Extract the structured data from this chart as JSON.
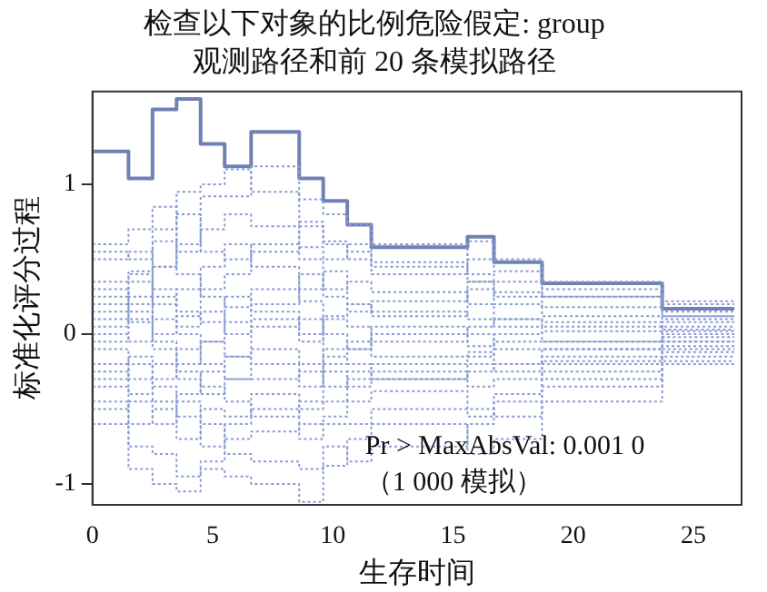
{
  "chart_data": {
    "type": "step",
    "title": "检查以下对象的比例危险假定: group",
    "subtitle": "观测路径和前 20 条模拟路径",
    "xlabel": "生存时间",
    "ylabel": "标准化评分过程",
    "x": [
      0,
      1.5,
      2.5,
      3.5,
      4.5,
      5.5,
      6.6,
      8.6,
      9.6,
      10.6,
      11.6,
      15.6,
      16.7,
      18.7,
      23.7,
      26.7
    ],
    "xlim": [
      0,
      27
    ],
    "xticks": [
      0,
      5,
      10,
      15,
      20,
      25
    ],
    "ylim": [
      -1.14,
      1.62
    ],
    "yticks": [
      -1,
      0,
      1
    ],
    "grid": false,
    "legend": false,
    "annotations": [
      "Pr > MaxAbsVal: 0.001 0",
      "（1 000 模拟）"
    ],
    "series": [
      {
        "color": "#8a9bd4",
        "line_style": "dotted",
        "values": [
          0.35,
          0.42,
          0.7,
          0.95,
          1.0,
          1.1,
          0.95,
          0.72,
          0.62,
          0.5,
          0.4,
          0.62,
          0.5,
          0.35,
          0.22,
          0.22
        ]
      },
      {
        "color": "#8a9bd4",
        "line_style": "dotted",
        "values": [
          0.2,
          0.2,
          0.45,
          0.6,
          0.92,
          0.92,
          1.12,
          0.9,
          0.8,
          0.73,
          0.6,
          0.5,
          0.42,
          0.3,
          0.15,
          0.15
        ]
      },
      {
        "color": "#8a9bd4",
        "line_style": "dotted",
        "values": [
          0.1,
          0.35,
          0.0,
          0.12,
          0.3,
          0.4,
          0.55,
          0.75,
          0.6,
          0.55,
          0.45,
          0.35,
          0.25,
          0.12,
          0.1,
          0.1
        ]
      },
      {
        "color": "#8a9bd4",
        "line_style": "dotted",
        "values": [
          0.0,
          -0.05,
          0.1,
          0.05,
          0.15,
          0.0,
          0.2,
          0.4,
          0.3,
          0.35,
          0.28,
          0.2,
          0.1,
          0.05,
          0.05,
          0.05
        ]
      },
      {
        "color": "#8a9bd4",
        "line_style": "dotted",
        "values": [
          -0.2,
          -0.15,
          -0.3,
          -0.1,
          -0.05,
          0.08,
          0.1,
          -0.05,
          0.12,
          0.2,
          0.15,
          0.1,
          0.05,
          -0.05,
          0.0,
          0.0
        ]
      },
      {
        "color": "#8a9bd4",
        "line_style": "dotted",
        "values": [
          -0.3,
          -0.2,
          -0.45,
          -0.4,
          -0.25,
          -0.15,
          -0.2,
          -0.35,
          -0.1,
          -0.05,
          -0.15,
          -0.12,
          -0.2,
          -0.1,
          -0.05,
          -0.05
        ]
      },
      {
        "color": "#8a9bd4",
        "line_style": "dotted",
        "values": [
          -0.35,
          -0.6,
          -0.5,
          -0.7,
          -0.5,
          -0.55,
          -0.4,
          -0.5,
          -0.45,
          -0.3,
          -0.25,
          -0.35,
          -0.3,
          -0.2,
          -0.12,
          -0.12
        ]
      },
      {
        "color": "#8a9bd4",
        "line_style": "dotted",
        "values": [
          -0.45,
          -0.75,
          -0.8,
          -0.95,
          -0.85,
          -0.7,
          -0.65,
          -0.6,
          -0.55,
          -0.45,
          -0.38,
          -0.5,
          -0.55,
          -0.3,
          -0.15,
          -0.15
        ]
      },
      {
        "color": "#8a9bd4",
        "line_style": "dotted",
        "values": [
          -0.6,
          -0.9,
          -1.0,
          -1.05,
          -0.9,
          -0.95,
          -1.0,
          -1.12,
          -0.88,
          -0.7,
          -0.6,
          -0.8,
          -0.7,
          -0.45,
          -0.2,
          -0.2
        ]
      },
      {
        "color": "#8a9bd4",
        "line_style": "dotted",
        "values": [
          0.55,
          0.5,
          0.62,
          0.4,
          0.25,
          0.18,
          0.3,
          0.22,
          0.0,
          -0.1,
          0.05,
          0.0,
          -0.1,
          -0.1,
          -0.05,
          -0.05
        ]
      },
      {
        "color": "#8a9bd4",
        "line_style": "dotted",
        "values": [
          0.5,
          0.55,
          0.2,
          0.3,
          0.45,
          0.6,
          0.45,
          0.3,
          0.42,
          0.2,
          0.12,
          0.3,
          0.2,
          0.18,
          0.12,
          0.12
        ]
      },
      {
        "color": "#8a9bd4",
        "line_style": "dotted",
        "values": [
          0.15,
          0.08,
          -0.1,
          -0.2,
          -0.05,
          -0.15,
          0.05,
          0.1,
          -0.2,
          -0.1,
          0.0,
          -0.08,
          0.0,
          0.02,
          0.08,
          0.08
        ]
      },
      {
        "color": "#8a9bd4",
        "line_style": "dotted",
        "values": [
          -0.1,
          -0.3,
          -0.35,
          -0.55,
          -0.75,
          -0.6,
          -0.5,
          -0.7,
          -0.6,
          -0.6,
          -0.5,
          -0.55,
          -0.4,
          -0.25,
          -0.1,
          -0.1
        ]
      },
      {
        "color": "#8a9bd4",
        "line_style": "dotted",
        "values": [
          0.05,
          0.25,
          0.45,
          0.8,
          0.55,
          0.5,
          0.6,
          0.5,
          0.25,
          0.15,
          0.22,
          0.35,
          0.28,
          0.25,
          0.2,
          0.2
        ]
      },
      {
        "color": "#8a9bd4",
        "line_style": "dotted",
        "values": [
          -0.05,
          0.1,
          0.25,
          0.0,
          -0.2,
          -0.3,
          -0.1,
          -0.2,
          -0.35,
          -0.25,
          -0.2,
          -0.15,
          -0.05,
          -0.05,
          0.02,
          0.02
        ]
      },
      {
        "color": "#8a9bd4",
        "line_style": "dotted",
        "values": [
          0.3,
          0.15,
          -0.05,
          -0.25,
          -0.35,
          -0.45,
          -0.55,
          -0.45,
          -0.25,
          -0.35,
          -0.3,
          -0.25,
          -0.2,
          -0.15,
          -0.08,
          -0.08
        ]
      },
      {
        "color": "#8a9bd4",
        "line_style": "dotted",
        "values": [
          -0.5,
          -0.45,
          -0.6,
          -0.45,
          -0.6,
          -0.8,
          -0.85,
          -0.9,
          -0.75,
          -0.85,
          -0.75,
          -0.6,
          -0.45,
          -0.35,
          -0.18,
          -0.18
        ]
      },
      {
        "color": "#8a9bd4",
        "line_style": "dotted",
        "values": [
          0.6,
          0.7,
          0.85,
          0.55,
          0.7,
          0.8,
          0.72,
          0.58,
          0.5,
          0.6,
          0.48,
          0.4,
          0.35,
          0.25,
          0.12,
          0.12
        ]
      },
      {
        "color": "#8a9bd4",
        "line_style": "dotted",
        "values": [
          0.25,
          0.4,
          0.3,
          0.15,
          0.08,
          0.25,
          0.15,
          0.0,
          0.1,
          0.05,
          -0.05,
          0.05,
          0.1,
          0.08,
          0.03,
          0.03
        ]
      },
      {
        "color": "#8a9bd4",
        "line_style": "dotted",
        "values": [
          -0.25,
          -0.4,
          -0.2,
          -0.3,
          -0.4,
          -0.3,
          -0.3,
          -0.25,
          -0.15,
          -0.2,
          -0.3,
          -0.2,
          -0.25,
          -0.18,
          -0.02,
          -0.02
        ]
      },
      {
        "color": "#6f82b3",
        "line_style": "solid",
        "values": [
          1.22,
          1.04,
          1.5,
          1.57,
          1.27,
          1.12,
          1.35,
          1.04,
          0.89,
          0.73,
          0.58,
          0.65,
          0.48,
          0.34,
          0.17,
          0.17
        ]
      }
    ]
  }
}
